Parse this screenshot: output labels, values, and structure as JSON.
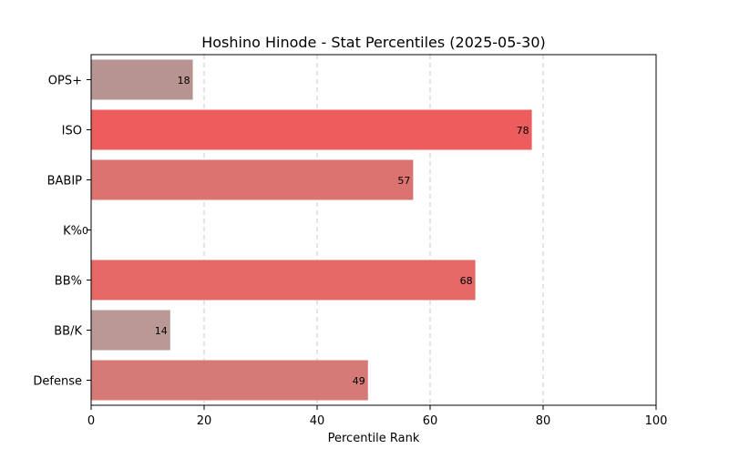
{
  "chart_data": {
    "type": "bar",
    "orientation": "horizontal",
    "title": "Hoshino Hinode - Stat Percentiles (2025-05-30)",
    "xlabel": "Percentile Rank",
    "ylabel": "",
    "xlim": [
      0,
      100
    ],
    "xticks": [
      0,
      20,
      40,
      60,
      80,
      100
    ],
    "grid": "x-dashed",
    "categories": [
      "OPS+",
      "ISO",
      "BABIP",
      "K%",
      "BB%",
      "BB/K",
      "Defense"
    ],
    "values": [
      18,
      78,
      57,
      0,
      68,
      14,
      49
    ],
    "colors": [
      "#b89490",
      "#ee5d5d",
      "#db7370",
      "#bca09c",
      "#e36866",
      "#b99895",
      "#d57a77"
    ]
  }
}
